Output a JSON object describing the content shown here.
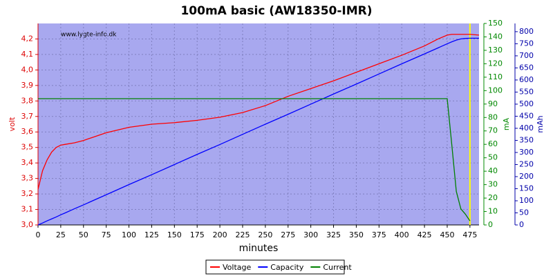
{
  "chart_data": {
    "type": "line",
    "title": "100mA basic (AW18350-IMR)",
    "watermark": "www.lygte-info.dk",
    "xlabel": "minutes",
    "ylabel": "volt",
    "y2label": "mA",
    "y3label": "mAh",
    "xlim": [
      0,
      485
    ],
    "xticks": [
      0,
      25,
      50,
      75,
      100,
      125,
      150,
      175,
      200,
      225,
      250,
      275,
      300,
      325,
      350,
      375,
      400,
      425,
      450,
      475
    ],
    "ylim": [
      3.0,
      4.3
    ],
    "yticks": [
      {
        "value": 3.0,
        "label": "3,0"
      },
      {
        "value": 3.1,
        "label": "3,1"
      },
      {
        "value": 3.2,
        "label": "3,2"
      },
      {
        "value": 3.3,
        "label": "3,3"
      },
      {
        "value": 3.4,
        "label": "3,4"
      },
      {
        "value": 3.5,
        "label": "3,5"
      },
      {
        "value": 3.6,
        "label": "3,6"
      },
      {
        "value": 3.7,
        "label": "3,7"
      },
      {
        "value": 3.8,
        "label": "3,8"
      },
      {
        "value": 3.9,
        "label": "3,9"
      },
      {
        "value": 4.0,
        "label": "4,0"
      },
      {
        "value": 4.1,
        "label": "4,1"
      },
      {
        "value": 4.2,
        "label": "4,2"
      }
    ],
    "y2lim": [
      0,
      150
    ],
    "y2ticks": [
      0,
      10,
      20,
      30,
      40,
      50,
      60,
      70,
      80,
      90,
      100,
      110,
      120,
      130,
      140,
      150
    ],
    "y3lim": [
      0,
      834
    ],
    "y3ticks": [
      0,
      50,
      100,
      150,
      200,
      250,
      300,
      350,
      400,
      450,
      500,
      550,
      600,
      650,
      700,
      750,
      800
    ],
    "grid": true,
    "legend": "bottom",
    "x": [
      0,
      5,
      10,
      15,
      20,
      25,
      30,
      40,
      50,
      60,
      75,
      100,
      125,
      150,
      175,
      200,
      225,
      250,
      275,
      300,
      325,
      350,
      375,
      400,
      425,
      440,
      450,
      455,
      460,
      465,
      470,
      475,
      485
    ],
    "series": [
      {
        "name": "Voltage",
        "color": "#ff0000",
        "axis": "y",
        "values": [
          3.23,
          3.35,
          3.42,
          3.47,
          3.5,
          3.515,
          3.52,
          3.53,
          3.545,
          3.565,
          3.595,
          3.63,
          3.65,
          3.66,
          3.675,
          3.695,
          3.725,
          3.77,
          3.83,
          3.88,
          3.93,
          3.985,
          4.04,
          4.095,
          4.155,
          4.2,
          4.225,
          4.23,
          4.23,
          4.23,
          4.23,
          4.23,
          4.225
        ]
      },
      {
        "name": "Capacity",
        "color": "#0000ff",
        "axis": "y3",
        "values": [
          0,
          8,
          17,
          25,
          33,
          42,
          50,
          67,
          83,
          100,
          125,
          167,
          208,
          250,
          292,
          333,
          375,
          417,
          458,
          500,
          542,
          583,
          625,
          667,
          708,
          733,
          750,
          758,
          765,
          770,
          772,
          773,
          773
        ]
      },
      {
        "name": "Current",
        "color": "#008000",
        "axis": "y2",
        "values": [
          94,
          94,
          94,
          94,
          94,
          94,
          94,
          94,
          94,
          94,
          94,
          94,
          94,
          94,
          94,
          94,
          94,
          94,
          94,
          94,
          94,
          94,
          94,
          94,
          94,
          94,
          94,
          60,
          25,
          12,
          8,
          3,
          null
        ]
      }
    ],
    "vline": {
      "x": 475,
      "color": "#ffff00"
    }
  }
}
